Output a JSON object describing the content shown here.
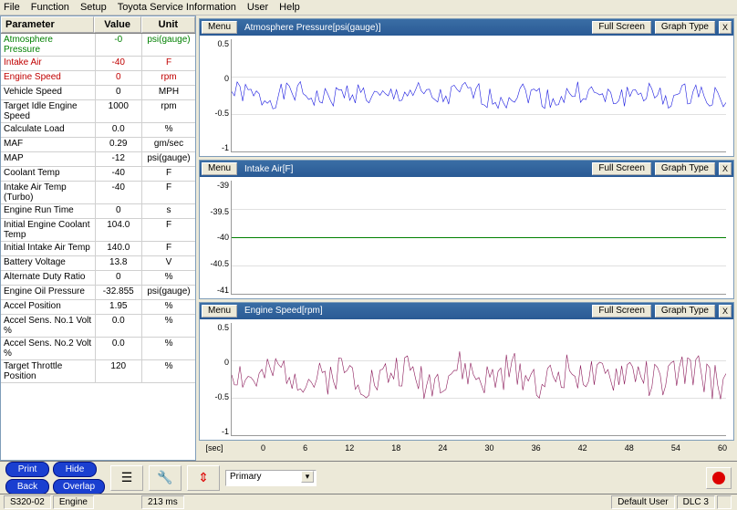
{
  "menubar": [
    "File",
    "Function",
    "Setup",
    "Toyota Service Information",
    "User",
    "Help"
  ],
  "table": {
    "headers": {
      "param": "Parameter",
      "value": "Value",
      "unit": "Unit"
    },
    "rows": [
      {
        "p": "Atmosphere Pressure",
        "v": "-0",
        "u": "psi(gauge)",
        "cls": "row-green"
      },
      {
        "p": "Intake Air",
        "v": "-40",
        "u": "F",
        "cls": "row-red"
      },
      {
        "p": "Engine Speed",
        "v": "0",
        "u": "rpm",
        "cls": "row-red"
      },
      {
        "p": "Vehicle Speed",
        "v": "0",
        "u": "MPH",
        "cls": ""
      },
      {
        "p": "Target Idle Engine Speed",
        "v": "1000",
        "u": "rpm",
        "cls": ""
      },
      {
        "p": "Calculate Load",
        "v": "0.0",
        "u": "%",
        "cls": ""
      },
      {
        "p": "MAF",
        "v": "0.29",
        "u": "gm/sec",
        "cls": ""
      },
      {
        "p": "MAP",
        "v": "-12",
        "u": "psi(gauge)",
        "cls": ""
      },
      {
        "p": "Coolant Temp",
        "v": "-40",
        "u": "F",
        "cls": ""
      },
      {
        "p": "Intake Air Temp (Turbo)",
        "v": "-40",
        "u": "F",
        "cls": ""
      },
      {
        "p": "Engine Run Time",
        "v": "0",
        "u": "s",
        "cls": ""
      },
      {
        "p": "Initial Engine Coolant Temp",
        "v": "104.0",
        "u": "F",
        "cls": ""
      },
      {
        "p": "Initial Intake Air Temp",
        "v": "140.0",
        "u": "F",
        "cls": ""
      },
      {
        "p": "Battery Voltage",
        "v": "13.8",
        "u": "V",
        "cls": ""
      },
      {
        "p": "Alternate Duty Ratio",
        "v": "0",
        "u": "%",
        "cls": ""
      },
      {
        "p": "Engine Oil Pressure",
        "v": "-32.855",
        "u": "psi(gauge)",
        "cls": ""
      },
      {
        "p": "Accel Position",
        "v": "1.95",
        "u": "%",
        "cls": ""
      },
      {
        "p": "Accel Sens. No.1 Volt %",
        "v": "0.0",
        "u": "%",
        "cls": ""
      },
      {
        "p": "Accel Sens. No.2 Volt %",
        "v": "0.0",
        "u": "%",
        "cls": ""
      },
      {
        "p": "Target Throttle Position",
        "v": "120",
        "u": "%",
        "cls": ""
      }
    ]
  },
  "chart_buttons": {
    "menu": "Menu",
    "full": "Full Screen",
    "type": "Graph Type",
    "close": "X"
  },
  "charts": [
    {
      "title": "Atmosphere Pressure[psi(gauge)]",
      "color": "#1a1ae0",
      "yticks": [
        "0.5",
        "0",
        "-0.5",
        "-1"
      ],
      "type": "noisy",
      "ylim": [
        -1,
        0.5
      ],
      "baseline": -0.25,
      "amplitude": 0.15,
      "seed": 1
    },
    {
      "title": "Intake Air[F]",
      "color": "#008000",
      "yticks": [
        "-39",
        "-39.5",
        "-40",
        "-40.5",
        "-41"
      ],
      "type": "flat",
      "ylim": [
        -41,
        -39
      ],
      "flat_value": -40
    },
    {
      "title": "Engine Speed[rpm]",
      "color": "#8b1a5a",
      "yticks": [
        "0.5",
        "0",
        "-0.5",
        "-1"
      ],
      "type": "noisy",
      "ylim": [
        -1,
        0.5
      ],
      "baseline": -0.2,
      "amplitude": 0.25,
      "seed": 2
    }
  ],
  "x_axis": {
    "unit": "[sec]",
    "ticks": [
      "0",
      "6",
      "12",
      "18",
      "24",
      "30",
      "36",
      "42",
      "48",
      "54",
      "60"
    ]
  },
  "bottom": {
    "blue_buttons": [
      [
        "Print",
        "Hide"
      ],
      [
        "Back",
        "Overlap"
      ]
    ],
    "dropdown": "Primary"
  },
  "status": {
    "left": "S320-02",
    "engine": "Engine",
    "ms": "213 ms",
    "user": "Default User",
    "dlc": "DLC 3"
  }
}
